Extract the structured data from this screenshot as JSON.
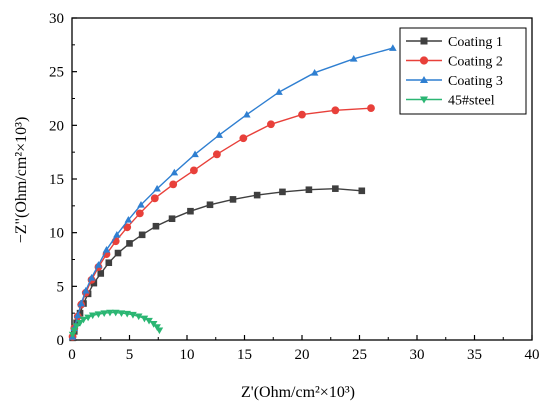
{
  "chart_data": {
    "type": "scatter",
    "xlabel": "Z'(Ohm/cm²×10³)",
    "ylabel": "−Z\"(Ohm/cm²×10³)",
    "xlim": [
      0,
      40
    ],
    "ylim": [
      0,
      30
    ],
    "xticks": [
      "0",
      "5",
      "10",
      "15",
      "20",
      "25",
      "30",
      "35",
      "40"
    ],
    "yticks": [
      "0",
      "5",
      "10",
      "15",
      "20",
      "25",
      "30"
    ],
    "grid": false,
    "legend_position": "top-right",
    "series": [
      {
        "name": "Coating 1",
        "color": "#3f3f3f",
        "marker": "square",
        "x": [
          0.05,
          0.2,
          0.4,
          0.7,
          1.0,
          1.4,
          1.9,
          2.5,
          3.2,
          4.0,
          5.0,
          6.1,
          7.3,
          8.7,
          10.3,
          12.0,
          14.0,
          16.1,
          18.3,
          20.6,
          22.9,
          25.2
        ],
        "y": [
          0.2,
          0.8,
          1.6,
          2.5,
          3.4,
          4.3,
          5.3,
          6.2,
          7.2,
          8.1,
          9.0,
          9.8,
          10.6,
          11.3,
          12.0,
          12.6,
          13.1,
          13.5,
          13.8,
          14.0,
          14.1,
          13.9
        ]
      },
      {
        "name": "Coating 2",
        "color": "#e8403a",
        "marker": "circle",
        "x": [
          0.05,
          0.2,
          0.5,
          0.8,
          1.2,
          1.7,
          2.3,
          3.0,
          3.8,
          4.8,
          5.9,
          7.2,
          8.8,
          10.6,
          12.6,
          14.9,
          17.3,
          20.0,
          22.9,
          26.0
        ],
        "y": [
          0.3,
          1.1,
          2.2,
          3.3,
          4.4,
          5.6,
          6.8,
          8.0,
          9.2,
          10.5,
          11.8,
          13.2,
          14.5,
          15.8,
          17.3,
          18.8,
          20.1,
          21.0,
          21.4,
          21.6
        ]
      },
      {
        "name": "Coating 3",
        "color": "#2f7fd1",
        "marker": "triangle",
        "x": [
          0.05,
          0.2,
          0.5,
          0.8,
          1.2,
          1.7,
          2.3,
          3.0,
          3.9,
          4.9,
          6.0,
          7.4,
          8.9,
          10.7,
          12.8,
          15.2,
          18.0,
          21.1,
          24.5,
          27.9
        ],
        "y": [
          0.3,
          1.1,
          2.3,
          3.4,
          4.6,
          5.8,
          7.0,
          8.4,
          9.8,
          11.2,
          12.6,
          14.1,
          15.6,
          17.3,
          19.1,
          21.0,
          23.1,
          24.9,
          26.2,
          27.2
        ]
      },
      {
        "name": "45#steel",
        "color": "#2bb673",
        "marker": "triangle-down",
        "x": [
          0.05,
          0.2,
          0.4,
          0.7,
          1.0,
          1.4,
          1.8,
          2.3,
          2.8,
          3.3,
          3.8,
          4.3,
          4.8,
          5.3,
          5.8,
          6.3,
          6.7,
          7.1,
          7.4,
          7.6
        ],
        "y": [
          0.5,
          0.9,
          1.3,
          1.6,
          1.9,
          2.1,
          2.3,
          2.4,
          2.5,
          2.55,
          2.55,
          2.5,
          2.45,
          2.35,
          2.2,
          2.0,
          1.8,
          1.5,
          1.2,
          0.9
        ]
      }
    ]
  }
}
